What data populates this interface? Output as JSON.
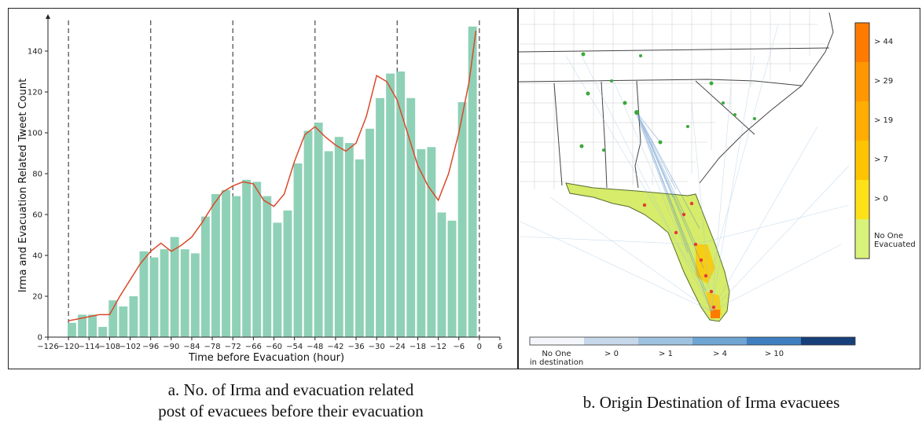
{
  "panel_a": {
    "caption_line1": "a. No. of Irma and evacuation related",
    "caption_line2": "post of evacuees before their evacuation"
  },
  "panel_b": {
    "caption": "b. Origin Destination of Irma evacuees",
    "colorbar_labels": [
      "> 44",
      "> 29",
      "> 19",
      "> 7",
      "> 0",
      "No One",
      "Evacuated"
    ],
    "colorbar_colors": [
      "#ff7b00",
      "#ff9800",
      "#ffae00",
      "#ffc400",
      "#ffe11a",
      "#d8f27a"
    ],
    "flow_legend": {
      "labels": [
        "No One",
        "in destination",
        "> 0",
        "> 1",
        "> 4",
        "> 10"
      ],
      "colors": [
        "#f2f6fa",
        "#c7d8ea",
        "#9fc2e0",
        "#6ea5d3",
        "#3f7fbf",
        "#173f7a"
      ]
    },
    "colors": {
      "flow_line": "#4a83c4",
      "origin_dot": "#e53935",
      "destination_dot": "#3aa83a",
      "florida_fill": "#d6ec6a"
    }
  },
  "chart_data": {
    "type": "bar",
    "xlabel": "Time before Evacuation (hour)",
    "ylabel": "Irma and Evacuation Related Tweet Count",
    "xlim": [
      -126,
      6
    ],
    "ylim": [
      0,
      155
    ],
    "xticks": [
      -126,
      -120,
      -114,
      -108,
      -102,
      -96,
      -90,
      -84,
      -78,
      -72,
      -66,
      -60,
      -54,
      -48,
      -42,
      -36,
      -30,
      -24,
      -18,
      -12,
      -6,
      0,
      6
    ],
    "xtick_labels": [
      "−126",
      "−120",
      "−114",
      "−108",
      "−102",
      "−96",
      "−90",
      "−84",
      "−78",
      "−72",
      "−66",
      "−60",
      "−54",
      "−48",
      "−42",
      "−36",
      "−30",
      "−24",
      "−18",
      "−12",
      "−6",
      "0",
      "6"
    ],
    "yticks": [
      0,
      20,
      40,
      60,
      80,
      100,
      120,
      140
    ],
    "ytick_labels": [
      "0",
      "20",
      "40",
      "60",
      "80",
      "100",
      "120",
      "140"
    ],
    "dashed_lines_x": [
      -120,
      -96,
      -72,
      -48,
      -24,
      0
    ],
    "bar_color": "#8fd1b6",
    "line_color": "#d94a2b",
    "bar_width_hours": 2.5,
    "bars": {
      "x": [
        -119,
        -116,
        -113,
        -110,
        -107,
        -104,
        -101,
        -98,
        -95,
        -92,
        -89,
        -86,
        -83,
        -80,
        -77,
        -74,
        -71,
        -68,
        -65,
        -62,
        -59,
        -56,
        -53,
        -50,
        -47,
        -44,
        -41,
        -38,
        -35,
        -32,
        -29,
        -26,
        -23,
        -20,
        -17,
        -14,
        -11,
        -8,
        -5,
        -2
      ],
      "values": [
        7,
        11,
        11,
        5,
        18,
        15,
        20,
        42,
        39,
        43,
        49,
        43,
        41,
        59,
        70,
        72,
        69,
        77,
        76,
        69,
        56,
        62,
        85,
        101,
        105,
        91,
        98,
        95,
        87,
        102,
        117,
        129,
        130,
        117,
        92,
        93,
        61,
        57,
        115,
        152
      ]
    },
    "line": {
      "x": [
        -120,
        -117,
        -114,
        -111,
        -108,
        -105,
        -102,
        -99,
        -96,
        -93,
        -90,
        -87,
        -84,
        -81,
        -78,
        -75,
        -72,
        -69,
        -66,
        -63,
        -60,
        -57,
        -54,
        -51,
        -48,
        -45,
        -42,
        -39,
        -36,
        -33,
        -30,
        -27,
        -24,
        -21,
        -18,
        -15,
        -12,
        -9,
        -6,
        -3,
        -1
      ],
      "values": [
        8,
        9,
        10,
        11,
        11,
        20,
        28,
        36,
        42,
        46,
        42,
        45,
        49,
        56,
        64,
        71,
        74,
        76,
        75,
        67,
        64,
        70,
        86,
        99,
        103,
        98,
        94,
        91,
        95,
        108,
        128,
        125,
        116,
        100,
        84,
        74,
        67,
        80,
        100,
        125,
        150
      ]
    }
  }
}
